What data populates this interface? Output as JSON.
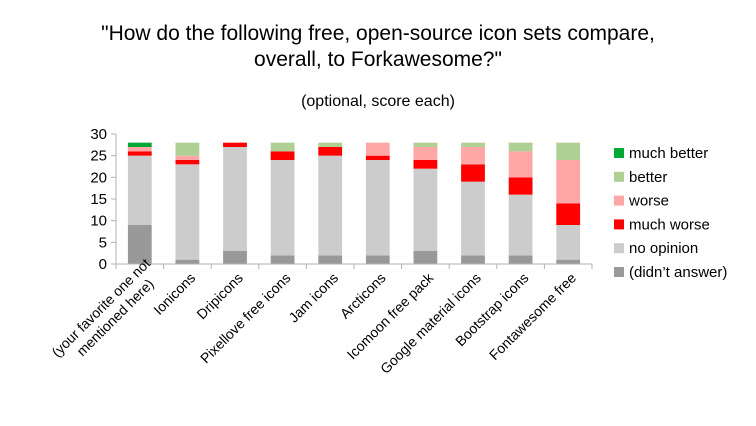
{
  "chart_data": {
    "type": "bar",
    "stacked": true,
    "title": "\"How do the following free, open-source icon sets compare, overall, to Forkawesome?\"",
    "title_lines": [
      "\"How do the following free, open-source icon sets compare,",
      "overall, to Forkawesome?\""
    ],
    "subtitle": "(optional, score each)",
    "xlabel": "",
    "ylabel": "",
    "ylim": [
      0,
      30
    ],
    "yticks": [
      0,
      5,
      10,
      15,
      20,
      25,
      30
    ],
    "grid": false,
    "legend_position": "right",
    "categories": [
      "(your favorite one not mentioned here)",
      "Ionicons",
      "Dripicons",
      "Pixellove free icons",
      "Jam icons",
      "Arcticons",
      "Icomoon free pack",
      "Google material icons",
      "Bootstrap icons",
      "Fontawesome free"
    ],
    "category_lines": [
      [
        "(your favorite one not",
        "mentioned here)"
      ],
      [
        "Ionicons"
      ],
      [
        "Dripicons"
      ],
      [
        "Pixellove free icons"
      ],
      [
        "Jam icons"
      ],
      [
        "Arcticons"
      ],
      [
        "Icomoon free pack"
      ],
      [
        "Google material icons"
      ],
      [
        "Bootstrap icons"
      ],
      [
        "Fontawesome free"
      ]
    ],
    "series": [
      {
        "name": "(didn’t answer)",
        "color": "#999999",
        "values": [
          9,
          1,
          3,
          2,
          2,
          2,
          3,
          2,
          2,
          1
        ]
      },
      {
        "name": "no opinion",
        "color": "#cccccc",
        "values": [
          16,
          22,
          24,
          22,
          23,
          22,
          19,
          17,
          14,
          8
        ]
      },
      {
        "name": "much worse",
        "color": "#ff0000",
        "values": [
          1,
          1,
          1,
          2,
          2,
          1,
          2,
          4,
          4,
          5
        ]
      },
      {
        "name": "worse",
        "color": "#ffa6a6",
        "values": [
          1,
          1,
          0,
          0,
          0,
          3,
          3,
          4,
          6,
          10
        ]
      },
      {
        "name": "better",
        "color": "#afd095",
        "values": [
          0,
          3,
          0,
          2,
          1,
          0,
          1,
          1,
          2,
          4
        ]
      },
      {
        "name": "much better",
        "color": "#00a933",
        "values": [
          1,
          0,
          0,
          0,
          0,
          0,
          0,
          0,
          0,
          0
        ]
      }
    ],
    "legend_order": [
      "much better",
      "better",
      "worse",
      "much worse",
      "no opinion",
      "(didn’t answer)"
    ]
  }
}
